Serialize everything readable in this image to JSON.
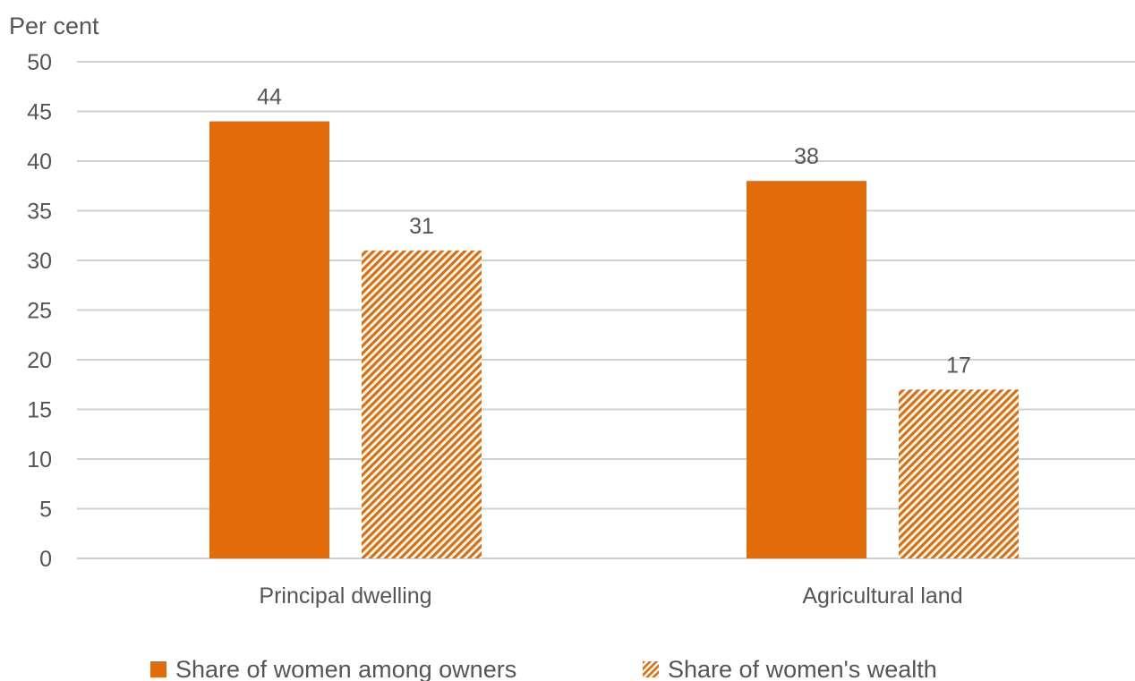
{
  "chart_data": {
    "type": "bar",
    "title": "",
    "unit_label": "Per cent",
    "xlabel": "",
    "ylabel": "",
    "categories": [
      "Principal dwelling",
      "Agricultural land"
    ],
    "series": [
      {
        "name": "Share of women among owners",
        "values": [
          44,
          38
        ],
        "fill": "solid"
      },
      {
        "name": "Share of women's wealth",
        "values": [
          31,
          17
        ],
        "fill": "hatched"
      }
    ],
    "ylim": [
      0,
      50
    ],
    "yticks": [
      0,
      5,
      10,
      15,
      20,
      25,
      30,
      35,
      40,
      45,
      50
    ],
    "grid": true,
    "legend_position": "bottom"
  },
  "colors": {
    "bar": "#e36c0a",
    "grid": "#d0d0d0",
    "text": "#555555"
  }
}
